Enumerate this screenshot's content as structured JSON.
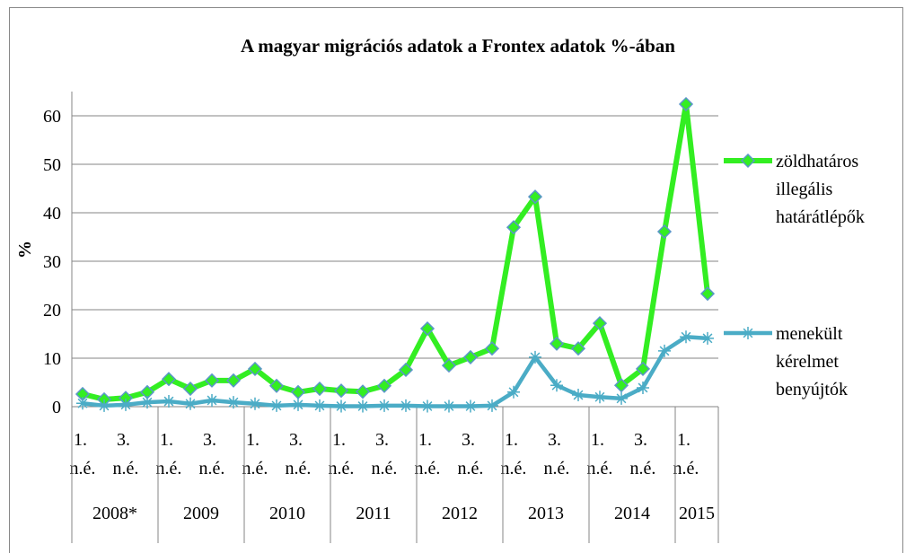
{
  "chart_data": {
    "type": "line",
    "title": "A magyar migrációs adatok a Frontex  adatok %-ában",
    "y_label": "%",
    "categories": [
      "1. n.é.",
      null,
      "3. n.é.",
      null,
      "1. n.é.",
      null,
      "3. n.é.",
      null,
      "1. n.é.",
      null,
      "3. n.é.",
      null,
      "1. n.é.",
      null,
      "3. n.é.",
      null,
      "1. n.é.",
      null,
      "3. n.é.",
      null,
      "1. n.é.",
      null,
      "3. n.é.",
      null,
      "1. n.é.",
      null,
      "3. n.é.",
      null,
      "1. n.é.",
      null
    ],
    "groups": [
      "2008*",
      "2009",
      "2010",
      "2011",
      "2012",
      "2013",
      "2014",
      "2015"
    ],
    "series": [
      {
        "name": "zöldhatáros illegális határátlépők",
        "color": "#33ee22",
        "marker_color": "#5a96c8",
        "values": [
          2.6,
          1.5,
          1.8,
          3,
          5.7,
          3.7,
          5.4,
          5.4,
          7.8,
          4.3,
          3,
          3.7,
          3.3,
          3.1,
          4.3,
          7.6,
          16.1,
          8.5,
          10.2,
          12,
          37,
          43.3,
          13,
          12,
          17.2,
          4.4,
          7.8,
          36.1,
          62.4,
          23.3
        ]
      },
      {
        "name": "menekült kérelmet benyújtók",
        "color": "#4bacc6",
        "marker_color": "#4bacc6",
        "values": [
          0.7,
          0.2,
          0.4,
          0.9,
          1.1,
          0.6,
          1.3,
          0.9,
          0.6,
          0.2,
          0.4,
          0.2,
          0.1,
          0.1,
          0.2,
          0.2,
          0.1,
          0.1,
          0.1,
          0.2,
          3,
          10.2,
          4.4,
          2.4,
          2.0,
          1.7,
          3.9,
          11.5,
          14.4,
          14.1
        ]
      }
    ],
    "ylim": [
      0,
      65
    ],
    "yticks": [
      0,
      10,
      20,
      30,
      40,
      50,
      60
    ],
    "grid": true,
    "legend": "right"
  }
}
